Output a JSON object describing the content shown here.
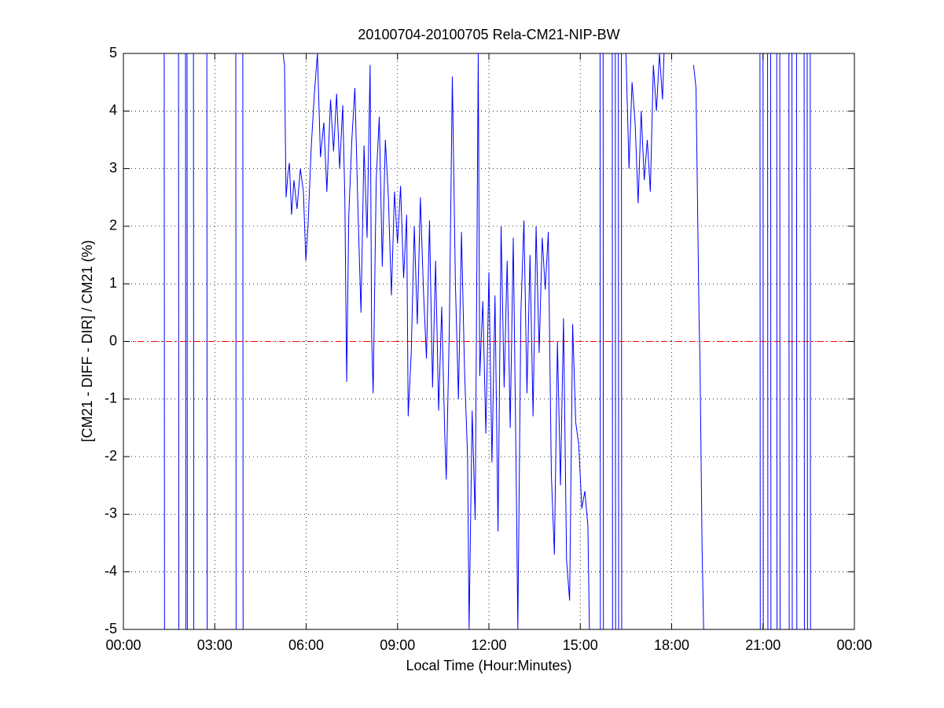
{
  "chart_data": {
    "type": "line",
    "title": "20100704-20100705 Rela-CM21-NIP-BW",
    "xlabel": "Local Time (Hour:Minutes)",
    "ylabel": "[CM21 - DIFF - DIR] / CM21 (%)",
    "xlim": [
      0,
      24
    ],
    "ylim": [
      -5,
      5
    ],
    "xticks": [
      {
        "value": 0,
        "label": "00:00"
      },
      {
        "value": 3,
        "label": "03:00"
      },
      {
        "value": 6,
        "label": "06:00"
      },
      {
        "value": 9,
        "label": "09:00"
      },
      {
        "value": 12,
        "label": "12:00"
      },
      {
        "value": 15,
        "label": "15:00"
      },
      {
        "value": 18,
        "label": "18:00"
      },
      {
        "value": 21,
        "label": "21:00"
      },
      {
        "value": 24,
        "label": "00:00"
      }
    ],
    "yticks": [
      -5,
      -4,
      -3,
      -2,
      -1,
      0,
      1,
      2,
      3,
      4,
      5
    ],
    "grid": true,
    "reference_line": {
      "value": 0,
      "color": "#ff0000"
    },
    "series": [
      {
        "color": "#0000ff",
        "x": [
          1.34,
          1.35,
          1.36,
          1.81,
          1.82,
          1.83,
          2.04,
          2.05,
          2.06,
          2.09,
          2.1,
          2.11,
          2.3,
          2.31,
          2.32,
          2.74,
          2.75,
          2.76,
          3.69,
          3.7,
          3.71,
          3.92,
          3.93,
          3.94,
          5.24,
          5.29,
          5.34,
          5.4,
          5.45,
          5.52,
          5.6,
          5.7,
          5.81,
          5.91,
          5.99,
          6.06,
          6.17,
          6.27,
          6.37,
          6.47,
          6.58,
          6.68,
          6.8,
          6.9,
          7.0,
          7.1,
          7.2,
          7.27,
          7.33,
          7.4,
          7.5,
          7.6,
          7.7,
          7.8,
          7.9,
          8.0,
          8.1,
          8.15,
          8.2,
          8.3,
          8.4,
          8.5,
          8.6,
          8.7,
          8.8,
          8.9,
          9.0,
          9.1,
          9.2,
          9.3,
          9.35,
          9.45,
          9.55,
          9.65,
          9.75,
          9.85,
          9.95,
          10.05,
          10.15,
          10.25,
          10.35,
          10.45,
          10.55,
          10.6,
          10.7,
          10.8,
          10.9,
          11.0,
          11.1,
          11.2,
          11.3,
          11.35,
          11.45,
          11.55,
          11.65,
          11.7,
          11.8,
          11.9,
          12.0,
          12.1,
          12.2,
          12.3,
          12.4,
          12.5,
          12.6,
          12.7,
          12.8,
          12.9,
          12.95,
          13.05,
          13.15,
          13.25,
          13.35,
          13.45,
          13.55,
          13.65,
          13.75,
          13.85,
          13.95,
          14.05,
          14.15,
          14.25,
          14.35,
          14.45,
          14.55,
          14.65,
          14.75,
          14.85,
          14.95,
          15.05,
          15.15,
          15.25,
          15.3,
          15.31,
          15.65,
          15.66,
          15.67,
          15.75,
          15.76,
          15.77,
          16.05,
          16.06,
          16.07,
          16.15,
          16.16,
          16.17,
          16.25,
          16.26,
          16.27,
          16.35,
          16.36,
          16.37,
          16.5,
          16.6,
          16.7,
          16.8,
          16.9,
          17.0,
          17.1,
          17.2,
          17.3,
          17.4,
          17.5,
          17.6,
          17.7,
          17.75,
          17.76,
          18.72,
          18.8,
          18.9,
          18.93,
          18.97,
          19.0,
          19.05,
          19.06,
          20.9,
          20.91,
          20.92,
          21.0,
          21.01,
          21.02,
          21.15,
          21.16,
          21.17,
          21.25,
          21.26,
          21.27,
          21.45,
          21.46,
          21.47,
          21.55,
          21.56,
          21.57,
          21.85,
          21.86,
          21.87,
          21.95,
          21.96,
          21.97,
          22.1,
          22.11,
          22.12,
          22.35,
          22.36,
          22.37,
          22.45,
          22.46,
          22.47,
          22.55,
          22.56,
          22.57
        ],
        "values": [
          5,
          -5,
          null,
          5,
          -5,
          null,
          5,
          -5,
          null,
          5,
          -5,
          null,
          5,
          -5,
          null,
          5,
          -5,
          null,
          5,
          -5,
          null,
          5,
          -5,
          null,
          5,
          4.8,
          2.5,
          2.9,
          3.1,
          2.2,
          2.8,
          2.3,
          3.0,
          2.6,
          1.4,
          2.0,
          3.4,
          4.3,
          5,
          3.2,
          3.8,
          2.6,
          4.2,
          3.3,
          4.3,
          3.0,
          4.1,
          2.5,
          -0.7,
          2.2,
          3.5,
          4.4,
          2.3,
          0.5,
          3.4,
          1.8,
          4.8,
          0.1,
          -0.9,
          2.8,
          3.9,
          1.3,
          3.5,
          2.5,
          0.8,
          2.6,
          1.7,
          2.7,
          1.1,
          2.2,
          -1.3,
          -0.2,
          2.0,
          0.3,
          2.5,
          0.9,
          -0.3,
          2.1,
          -0.8,
          1.4,
          -1.2,
          0.6,
          -1.6,
          -2.4,
          0.2,
          4.6,
          1.0,
          -1.0,
          1.9,
          -0.5,
          -2.0,
          -5,
          -1.2,
          -3.1,
          5,
          -0.6,
          0.7,
          -1.6,
          1.2,
          -2.1,
          0.8,
          -3.3,
          2.0,
          -0.8,
          1.4,
          -1.5,
          1.8,
          -2.5,
          -5,
          0.5,
          2.1,
          -0.9,
          1.5,
          -1.3,
          2.0,
          -0.2,
          1.8,
          0.9,
          1.9,
          -2.3,
          -3.7,
          0.0,
          -2.5,
          0.4,
          -3.8,
          -4.5,
          0.3,
          -1.4,
          -1.8,
          -2.9,
          -2.6,
          -3.2,
          -5,
          null,
          5,
          -5,
          null,
          5,
          -5,
          null,
          5,
          -5,
          null,
          5,
          -5,
          null,
          5,
          -5,
          null,
          5,
          -5,
          null,
          5,
          3.0,
          4.5,
          3.8,
          2.4,
          4.0,
          2.8,
          3.5,
          2.6,
          4.8,
          4.0,
          5,
          4.2,
          5,
          null,
          4.8,
          4.4,
          0.4,
          -0.3,
          -2.2,
          -3.6,
          -5,
          null,
          5,
          -5,
          null,
          5,
          -5,
          null,
          5,
          -5,
          null,
          5,
          -5,
          null,
          5,
          -5,
          null,
          5,
          -5,
          null,
          5,
          -5,
          null,
          5,
          -5,
          null,
          5,
          -5,
          null,
          5,
          -5,
          null,
          5,
          -5,
          null,
          5,
          -5,
          null
        ]
      }
    ]
  }
}
